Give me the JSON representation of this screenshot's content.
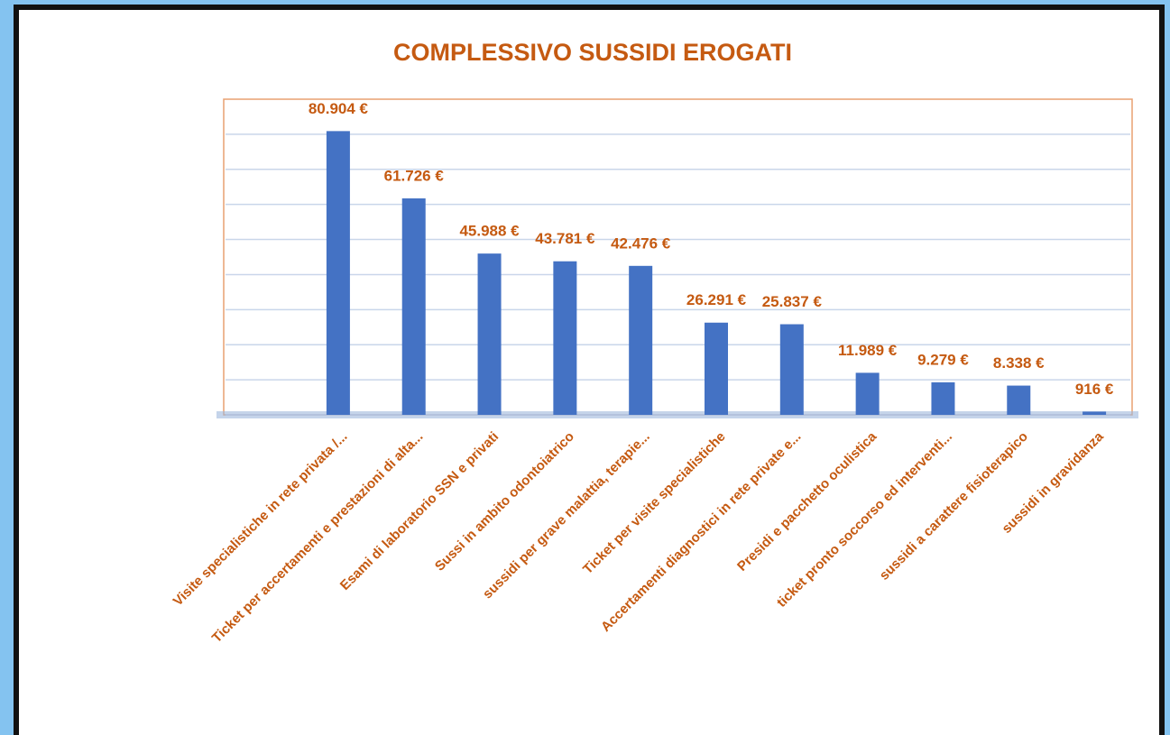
{
  "chart_data": {
    "type": "bar",
    "title": "COMPLESSIVO SUSSIDI EROGATI",
    "categories": [
      "Visite specialistiche in rete privata /...",
      "Ticket per accertamenti e prestazioni di alta...",
      "Esami di laboratorio SSN e privati",
      "Sussi in ambito odontoiatrico",
      "sussidi per grave malattia, terapie...",
      "Ticket per visite specialistiche",
      "Accertamenti diagnostici in rete private e...",
      "Presidi e pacchetto oculistica",
      "ticket pronto soccorso ed interventi...",
      "sussidi a carattere fisioterapico",
      "sussidi in gravidanza"
    ],
    "values": [
      80904,
      61726,
      45988,
      43781,
      42476,
      26291,
      25837,
      11989,
      9279,
      8338,
      916
    ],
    "value_labels": [
      "80.904 €",
      "61.726 €",
      "45.988 €",
      "43.781 €",
      "42.476 €",
      "26.291 €",
      "25.837 €",
      "11.989 €",
      "9.279 €",
      "8.338 €",
      "916 €"
    ],
    "color": "#4472c4",
    "ylim": [
      0,
      90000
    ],
    "yticks": [
      0,
      10000,
      20000,
      30000,
      40000,
      50000,
      60000,
      70000,
      80000
    ],
    "grid": true
  }
}
